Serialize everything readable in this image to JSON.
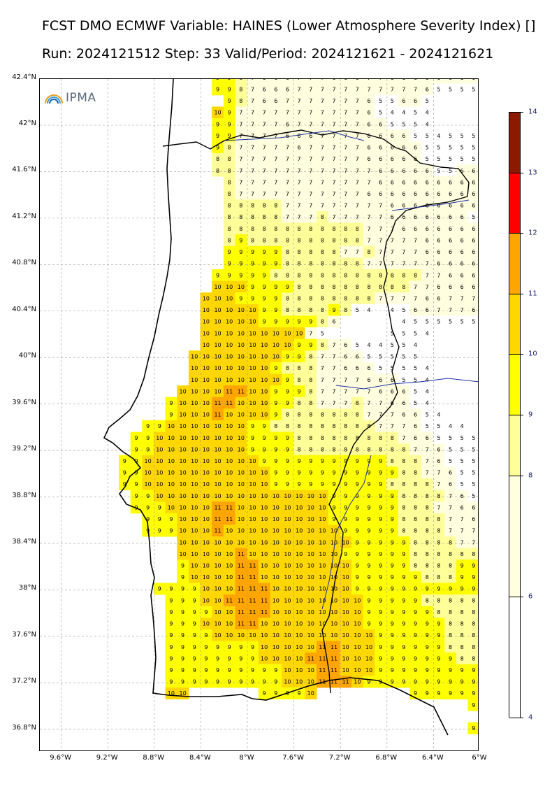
{
  "title_line1": "FCST DMO ECMWF Variable: HAINES (Lower Atmosphere Severity Index) []",
  "title_line2": "Run: 2024121512 Step: 33 Valid/Period: 2024121621 - 2024121621",
  "logo_text": "IPMA",
  "lat_labels": [
    "42.4°N",
    "42°N",
    "41.6°N",
    "41.2°N",
    "40.8°N",
    "40.4°N",
    "40°N",
    "39.6°N",
    "39.2°N",
    "38.8°N",
    "38.4°N",
    "38°N",
    "37.6°N",
    "37.2°N",
    "36.8°N"
  ],
  "lon_labels": [
    "9.6°W",
    "9.2°W",
    "8.8°W",
    "8.4°W",
    "8°W",
    "7.6°W",
    "7.2°W",
    "6.8°W",
    "6.4°W",
    "6°W"
  ],
  "colorbar": {
    "labels": [
      "14",
      "13",
      "12",
      "11",
      "10",
      "9",
      "8",
      "6",
      "4"
    ],
    "levels": [
      {
        "from": 13,
        "to": 14,
        "color": "#8b1a00"
      },
      {
        "from": 12,
        "to": 13,
        "color": "#ff0000"
      },
      {
        "from": 11,
        "to": 12,
        "color": "#ffa500"
      },
      {
        "from": 10,
        "to": 11,
        "color": "#ffd700"
      },
      {
        "from": 9,
        "to": 10,
        "color": "#ffff00"
      },
      {
        "from": 8,
        "to": 9,
        "color": "#ffff99"
      },
      {
        "from": 6,
        "to": 8,
        "color": "#ffffe0"
      },
      {
        "from": 4,
        "to": 6,
        "color": "#ffffff"
      }
    ]
  },
  "grid": {
    "lon_start": -9.2,
    "lon_step": 0.1,
    "lat_start": 42.4,
    "lat_step": -0.1,
    "rows": [
      ". . . . . . . . . 9 9 8 7 6 6 6 7 7 7 6 6 6 7 7 6 6 6 6 6 6 6 6 6 6 6 6 6 6",
      ". . . . . . . . . 9 9 8 7 6 6 6 7 7 7 7 7 7 7 7 7 7 7 6 5 5 5 5 5 5 5 5 5 5",
      ". . . . . . . . . . 9 8 7 6 6 7 7 7 7 7 7 7 6 5 5 6 6 5 . . . . . . . . 4 5 5",
      ". . . . . . . . . 10 9 7 7 7 7 7 7 7 7 7 7 7 6 5 4 4 5 4 . . . . . . . . 5 5 5",
      ". . . . . . . . . 9 9 7 7 7 7 6 7 7 7 7 7 7 6 6 5 5 5 4 . . . . 4 5 5 5 5 5 5",
      ". . . . . . . . . 9 9 7 7 7 7 6 6 6 7 7 7 7 6 6 6 6 5 5 4 5 5 5 4 5 5 5 5 5 5",
      ". . . . . . . . . 9 8 7 7 7 7 7 6 7 7 7 7 7 6 6 6 6 6 5 5 5 5 5 5 5 5 6 6 5 5",
      ". . . . . . . . . 8 8 7 7 7 7 7 7 7 7 7 7 7 6 6 6 6 6 5 5 5 5 5 5 5 6 6 5 5 5",
      ". . . . . . . . . 8 8 7 7 7 7 7 7 7 7 7 7 7 7 6 6 6 6 6 5 5 6 6 6 6 6 6 5 6 5",
      ". . . . . . . . . . 8 7 7 7 7 7 7 7 7 7 7 7 7 6 6 6 6 6 6 6 6 6 6 6 6 6 5 5 5",
      ". . . . . . . . . . 8 7 7 7 7 7 7 7 7 7 7 7 6 6 6 6 6 6 6 6 6 6 6 6 6 6 5 5 5",
      ". . . . . . . . . . 8 8 8 8 8 7 7 7 7 7 7 7 7 7 6 6 6 6 6 6 6 6 5 6 6 6 5 5 5",
      ". . . . . . . . . . 8 8 8 8 8 7 7 7 8 7 7 7 7 7 6 6 6 6 6 6 6 5 5 5 5 5 5 5 5",
      ". . . . . . . . . . 8 8 8 8 8 8 8 8 8 8 8 8 7 7 7 6 6 6 6 6 6 6 6 5 5 5 5 5 5",
      ". . . . . . . . . . 8 9 8 8 8 8 8 8 8 8 8 8 7 7 7 7 7 6 6 6 6 6 6 6 5 5 5 5 6",
      ". . . . . . . . . . 9 9 9 9 9 8 8 8 8 8 7 7 8 7 7 7 7 6 6 6 6 6 6 6 6 6 6 6 6",
      ". . . . . . . . . . 9 9 9 9 9 8 8 8 8 8 8 8 7 7 7 7 7 7 6 6 6 6 6 6 6 6 6 6 6",
      ". . . . . . . . . 9 9 9 9 9 8 8 8 8 8 8 8 8 8 8 8 8 8 7 7 6 6 6 6 6 6 6 6 6 6",
      ". . . . . . . . . 10 10 10 9 9 9 9 8 8 8 8 8 8 8 8 8 8 7 7 6 6 6 6 6 6 6 6 6 6",
      ". . . . . . . . 10 10 10 9 9 9 9 8 8 8 8 8 8 8 8 7 7 7 7 6 6 7 7 7 6 6 6 6 6",
      ". . . . . . . . 10 10 10 10 10 9 9 8 8 8 8 9 8 5 4 . 4 5 6 6 7 7 7 6 6 5 5 6 6",
      ". . . . . . . . 10 10 10 10 10 9 9 9 9 9 8 6 . . . . . 4 5 5 5 5 5 5 5 5 5 5 6",
      ". . . . . . . . 10 10 10 10 10 10 10 10 10 7 5 . . . . . 5 5 5 4 . . . . . 4 5 5 5",
      ". . . . . . . . 10 10 10 10 10 10 10 10 9 9 8 7 6 5 4 4 5 5 4 . . . . . . 4 4 5 5",
      ". . . . . . . 10 10 10 10 10 10 10 10 9 9 8 7 7 6 6 5 5 5 5 5 . . . . . . 4 5 5 5",
      ". . . . . . . 10 10 10 10 10 10 10 9 8 8 8 7 7 6 6 6 5 5 5 5 4 . . . . . . . 5 5 5",
      ". . . . . . . 10 10 10 10 10 10 10 10 9 8 8 7 7 7 7 6 6 6 5 5 4 . . . . . . . 4 5 5",
      ". . . . . . 10 10 10 10 11 11 10 10 9 9 9 8 7 7 7 7 7 6 6 6 5 4 . . . . . . . . 4 5",
      ". . . . . 9 10 10 10 11 11 10 10 10 9 9 8 8 7 7 7 8 7 7 6 6 5 4 . . . . . . . . 4 5",
      ". . . . . 9 10 10 10 11 10 10 10 10 9 8 8 8 8 8 8 8 7 7 7 6 6 5 4 . . . . . . . 4 5",
      ". . . 9 9 10 10 10 10 10 10 10 9 9 8 8 8 8 8 8 8 8 8 7 7 7 6 5 5 4 4 . . . . 4 5",
      ". . 9 9 10 10 10 10 10 10 10 10 9 9 9 9 8 8 8 8 8 8 8 8 8 7 6 6 5 5 5 5 4 5 5",
      ". . 9 9 10 10 10 10 10 10 10 10 9 9 9 9 8 8 8 8 8 8 8 8 8 8 7 7 6 5 5 5 5 5 5",
      ". 9 9 10 10 10 10 10 10 10 10 10 10 9 9 9 9 9 9 9 9 9 9 9 8 8 8 7 6 5 5 5 5 5 5",
      ". 9 9 10 10 10 10 10 10 10 10 10 10 10 9 9 9 9 9 9 9 9 9 9 9 8 8 7 7 6 5 5 5 5 5",
      ". 9 9 10 10 10 10 10 10 10 10 10 10 10 9 9 9 9 9 9 9 9 9 9 8 8 8 8 7 6 5 5 5 5 5",
      ". . 9 9 10 10 10 10 10 10 10 10 10 10 10 10 10 10 10 9 9 9 9 9 9 8 8 8 8 7 6 5 5 5 6",
      ". . 9 9 9 10 10 10 10 11 11 10 10 10 10 10 10 10 10 9 9 9 9 9 9 8 8 8 7 7 6 6 6 6 6",
      ". . . 9 9 9 10 10 10 11 11 10 10 10 10 10 10 10 10 9 9 9 9 9 9 8 8 8 8 7 7 6 6 6 7",
      ". . . 9 9 9 10 10 10 11 10 10 10 10 10 10 10 10 10 10 9 9 9 9 9 8 8 8 8 7 7 7 7 7 7",
      ". . . . . . 10 10 10 10 10 10 10 10 10 10 10 10 10 10 10 9 9 9 9 9 8 8 8 8 7 7 7 7 8",
      ". . . . . . 10 10 10 10 10 11 10 10 10 10 10 10 10 10 9 9 9 9 9 9 8 8 8 8 8 8 9 9 9",
      ". . . . . . 9 10 10 10 10 11 11 10 10 10 10 10 10 10 10 9 9 9 9 9 8 8 8 8 9 9 9 9 9",
      ". . . . . . 9 10 10 10 10 11 11 10 10 10 10 10 10 10 10 9 9 9 9 9 9 8 8 8 9 9 9 9 9",
      ". . . . 9 9 9 9 10 10 10 11 11 11 10 10 10 10 10 10 10 9 9 9 9 9 9 9 9 9 9 9 9 9 9",
      ". . . . . 9 9 9 10 10 11 11 11 11 10 10 10 10 10 10 10 10 9 9 9 9 9 8 8 8 8 8 8 8 8",
      ". . . . . 9 9 9 9 10 10 11 11 11 10 10 10 10 10 10 10 10 9 9 9 9 9 9 8 8 8 8 8 8 8",
      ". . . . . 9 9 9 10 10 10 11 11 10 10 10 10 10 10 10 10 10 9 9 9 9 9 9 9 8 8 8 8 8 8",
      ". . . . . 9 9 9 9 10 10 10 10 10 10 10 10 10 10 10 10 10 10 9 9 9 9 9 9 8 8 8 8 8 8",
      ". . . . . 9 9 9 9 9 9 9 9 10 10 10 10 10 11 11 10 10 10 9 9 9 9 9 9 8 8 8 8 8 8",
      ". . . . . 9 9 9 9 9 9 9 9 10 10 10 10 11 11 11 10 10 10 9 9 9 9 9 9 9 8 8 8 8 8",
      ". . . . . 9 9 9 9 9 9 9 9 9 9 10 10 10 11 11 10 10 10 9 9 9 9 9 9 9 9 9 8 8 8",
      ". . . . . 9 9 9 9 9 9 9 9 9 9 10 10 10 11 11 11 10 9 9 9 9 9 9 9 9 9 9 9 9 9",
      ". . . . . 10 10 . . . . . . 9 9 9 9 10 . . . . . . . . 9 9 9 9 9 9 9 9 9",
      ". . . . . . . . . . . . . . . . . . . . . . . . . . . . . . . 9 9 9 9 9",
      ". . . . . . . . . . . . . . . . . . . . . . . . . . . . . . . . 9 9 9 9",
      ". . . . . . . . . . . . . . . . . . . . . . . . . . . . . . . 9 9 9 9"
    ]
  }
}
